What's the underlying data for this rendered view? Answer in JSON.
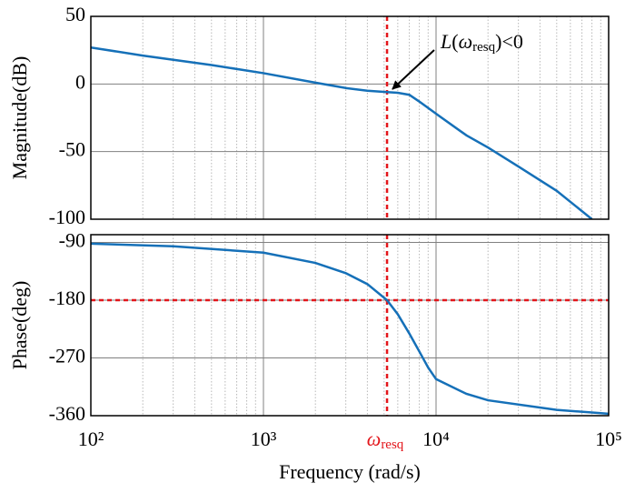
{
  "chart_data": [
    {
      "type": "line",
      "ylabel": "Magnitude(dB)",
      "log_x": true,
      "grid": true,
      "xlim": [
        100,
        100000
      ],
      "xticks": [
        100,
        1000,
        10000,
        100000
      ],
      "xminor": [
        200,
        300,
        400,
        500,
        600,
        700,
        800,
        900,
        2000,
        3000,
        4000,
        5000,
        6000,
        7000,
        8000,
        9000,
        20000,
        30000,
        40000,
        50000,
        60000,
        70000,
        80000,
        90000
      ],
      "ylim": [
        -100,
        50
      ],
      "yticks": [
        50,
        0,
        -50,
        -100
      ],
      "x": [
        100,
        200,
        500,
        1000,
        2000,
        3000,
        4000,
        5200,
        6000,
        7000,
        8000,
        10000,
        15000,
        20000,
        30000,
        50000,
        80000
      ],
      "values": [
        27,
        21,
        14,
        8,
        1,
        -3,
        -5,
        -6,
        -6.5,
        -8,
        -13,
        -22,
        -38,
        -47,
        -61,
        -79,
        -100
      ],
      "color": "#1570b8",
      "ref_x": 5200,
      "ref_color": "#e3161b",
      "annotation": [
        "L",
        "(",
        "ω",
        "resq",
        ")<0"
      ]
    },
    {
      "type": "line",
      "ylabel": "Phase(deg)",
      "xlabel": "Frequency (rad/s)",
      "log_x": true,
      "grid": true,
      "xlim": [
        100,
        100000
      ],
      "xticks": [
        {
          "value": 100,
          "label": "10²"
        },
        {
          "value": 1000,
          "label": "10³"
        },
        {
          "value": 10000,
          "label": "10⁴"
        },
        {
          "value": 100000,
          "label": "10⁵"
        }
      ],
      "xminor": [
        200,
        300,
        400,
        500,
        600,
        700,
        800,
        900,
        2000,
        3000,
        4000,
        5000,
        6000,
        7000,
        8000,
        9000,
        20000,
        30000,
        40000,
        50000,
        60000,
        70000,
        80000,
        90000
      ],
      "ylim": [
        -360,
        -78
      ],
      "yticks": [
        -90,
        -180,
        -270,
        -360
      ],
      "x": [
        100,
        300,
        1000,
        2000,
        3000,
        4000,
        5200,
        6000,
        7000,
        8000,
        9000,
        10000,
        15000,
        20000,
        50000,
        100000
      ],
      "values": [
        -92,
        -96,
        -106,
        -122,
        -138,
        -155,
        -180,
        -202,
        -232,
        -260,
        -285,
        -303,
        -326,
        -336,
        -351,
        -357
      ],
      "color": "#1570b8",
      "ref_x": 5200,
      "ref_y": -180,
      "ref_color": "#e3161b",
      "ref_label": [
        "ω",
        "resq"
      ]
    }
  ]
}
